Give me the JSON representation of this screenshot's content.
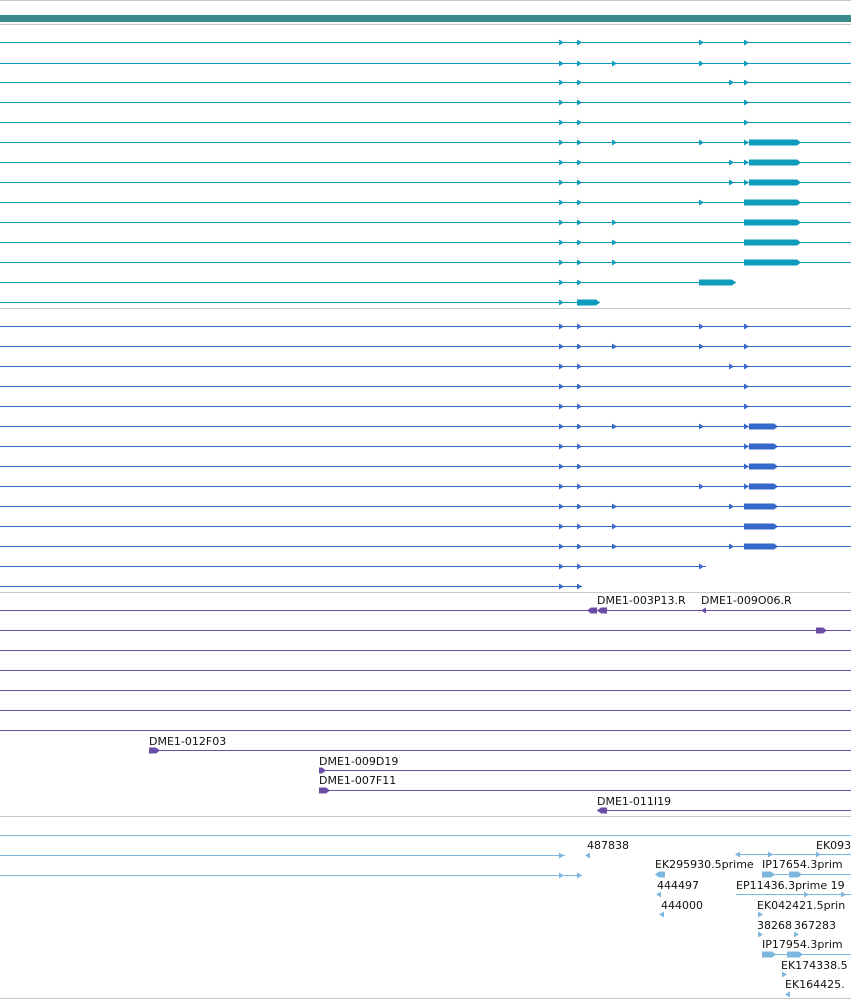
{
  "colors": {
    "topbar": "#3a8a8a",
    "teal": "#0f9bbb",
    "blue": "#3569c9",
    "purple": "#6b4ca6",
    "light": "#7cb7e0",
    "divider": "#c8c8c8",
    "background": "#ffffff"
  },
  "tracks": [
    {
      "name": "teal-transcripts",
      "color_key": "teal"
    },
    {
      "name": "blue-transcripts",
      "color_key": "blue"
    },
    {
      "name": "purple-clones",
      "color_key": "purple"
    },
    {
      "name": "light-blue-ests",
      "color_key": "light"
    }
  ],
  "labels": {
    "dme1_003p13": "DME1-003P13.R",
    "dme1_009o06": "DME1-009O06.R",
    "dme1_012f03": "DME1-012F03",
    "dme1_009d19": "DME1-009D19",
    "dme1_007f11": "DME1-007F11",
    "dme1_011i19": "DME1-011I19",
    "est_487838": "487838",
    "est_ek093": "EK093",
    "est_ek295930": "EK295930.5prime",
    "est_ip17654": "IP17654.3prim",
    "est_444497": "444497",
    "est_ep11436": "EP11436.3prime 19",
    "est_444000": "444000",
    "est_ek042421": "EK042421.5prin",
    "est_382683": "38268",
    "est_367283": "367283",
    "est_ip17954": "IP17954.3prim",
    "est_ek174338": "EK174338.5",
    "est_ek164425": "EK164425."
  }
}
